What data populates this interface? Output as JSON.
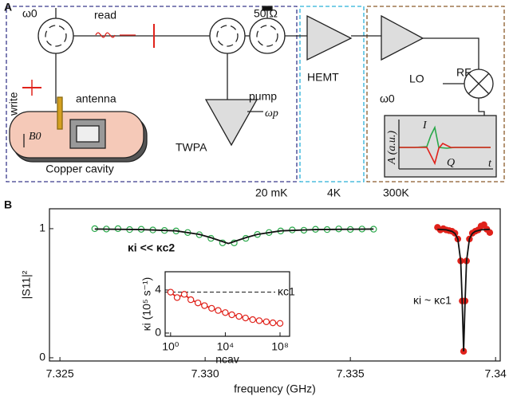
{
  "panel_a": {
    "label": "A",
    "omega0_top": "ω0",
    "read": "read",
    "load": "50 Ω",
    "write": "write",
    "antenna": "antenna",
    "b0": "B0",
    "cavity": "Copper cavity",
    "twpa": "TWPA",
    "pump": "pump",
    "omega_p": "ωp",
    "hemt": "HEMT",
    "rf": "RF",
    "lo": "LO",
    "omega0_lo": "ω0",
    "inset_ylabel": "A (a.u.)",
    "inset_i": "I",
    "inset_q": "Q",
    "inset_t": "t",
    "stage_20mk": "20 mK",
    "stage_4k": "4K",
    "stage_300k": "300K"
  },
  "chart_data": [
    {
      "type": "scatter",
      "label": "B",
      "xlabel": "frequency (GHz)",
      "ylabel": "|S11|²",
      "xlim": [
        7.32464,
        7.34016
      ],
      "ylim": [
        -0.025,
        1.154
      ],
      "xticks": [
        7.325,
        {
          "value": 7.33,
          "label": "7.330"
        },
        7.335,
        7.34
      ],
      "yticks": [
        0,
        1
      ],
      "annotations": [
        "κi << κc2",
        "κi ~ κc1"
      ],
      "series": [
        {
          "color": "#2aa84a",
          "marker": "open-circle",
          "x": [
            7.3262,
            7.3266,
            7.327,
            7.3274,
            7.3278,
            7.3282,
            7.3286,
            7.329,
            7.3294,
            7.3298,
            7.3302,
            7.3306,
            7.331,
            7.3314,
            7.3318,
            7.3322,
            7.3326,
            7.333,
            7.3334,
            7.3338,
            7.3342,
            7.3346,
            7.335,
            7.3354,
            7.3358
          ],
          "values": [
            1.0,
            0.997,
            1.0,
            0.993,
            0.995,
            0.99,
            0.986,
            0.982,
            0.97,
            0.953,
            0.925,
            0.89,
            0.89,
            0.925,
            0.955,
            0.97,
            0.982,
            0.99,
            0.988,
            0.995,
            0.993,
            0.998,
            0.994,
            0.997,
            0.996
          ]
        },
        {
          "color": "#111111",
          "marker": "none",
          "x": [
            7.3262,
            7.3278,
            7.329,
            7.3298,
            7.3302,
            7.3306,
            7.3308,
            7.331,
            7.3314,
            7.3318,
            7.3326,
            7.3338,
            7.3358
          ],
          "values": [
            0.997,
            0.993,
            0.983,
            0.956,
            0.93,
            0.9,
            0.885,
            0.9,
            0.93,
            0.956,
            0.983,
            0.993,
            0.997
          ]
        },
        {
          "color": "#e0221b",
          "marker": "filled-circle",
          "x": [
            7.338,
            7.3381,
            7.3382,
            7.3383,
            7.3384,
            7.3385,
            7.3386,
            7.3387,
            7.3388,
            7.33885,
            7.3389,
            7.33895,
            7.339,
            7.3391,
            7.3392,
            7.3393,
            7.3394,
            7.3395,
            7.3396,
            7.3397,
            7.3398
          ],
          "values": [
            1.01,
            0.99,
            1.0,
            0.99,
            0.985,
            0.98,
            0.965,
            0.92,
            0.75,
            0.44,
            0.05,
            0.44,
            0.75,
            0.92,
            0.965,
            0.98,
            0.99,
            1.02,
            1.03,
            0.995,
            0.97
          ]
        },
        {
          "color": "#111111",
          "marker": "none",
          "x": [
            7.338,
            7.3383,
            7.3385,
            7.3386,
            7.3387,
            7.3388,
            7.33885,
            7.3389,
            7.33895,
            7.339,
            7.3391,
            7.3392,
            7.3393,
            7.3395,
            7.3398
          ],
          "values": [
            0.995,
            0.991,
            0.979,
            0.963,
            0.921,
            0.749,
            0.438,
            0.05,
            0.438,
            0.749,
            0.921,
            0.963,
            0.979,
            0.991,
            0.995
          ]
        }
      ]
    },
    {
      "type": "line",
      "xlabel": "ncav",
      "ylabel": "κi (10⁵ s⁻¹)",
      "log_x": true,
      "color": "#e0221b",
      "xlim": [
        0.4,
        500000000
      ],
      "ylim": [
        -0.3,
        5.7
      ],
      "xticks": [
        {
          "value": 1,
          "label": "10⁰"
        },
        {
          "value": 10000,
          "label": "10⁴"
        },
        {
          "value": 100000000,
          "label": "10⁸"
        }
      ],
      "yticks": [
        0,
        4
      ],
      "x": [
        1,
        3,
        10,
        30,
        100,
        300,
        1000,
        3000,
        10000,
        30000,
        100000,
        300000,
        1000000,
        3000000,
        10000000,
        30000000,
        100000000
      ],
      "values": [
        3.8,
        3.3,
        3.6,
        3.1,
        2.8,
        2.55,
        2.3,
        2.1,
        1.9,
        1.7,
        1.55,
        1.4,
        1.25,
        1.15,
        1.05,
        0.95,
        0.9
      ],
      "errors": [
        0.3,
        0.25,
        0.25,
        null,
        null,
        null,
        null,
        null,
        null,
        null,
        null,
        null,
        null,
        null,
        null,
        null,
        null
      ],
      "reference_line": 3.8,
      "reference_label": "κc1"
    }
  ]
}
